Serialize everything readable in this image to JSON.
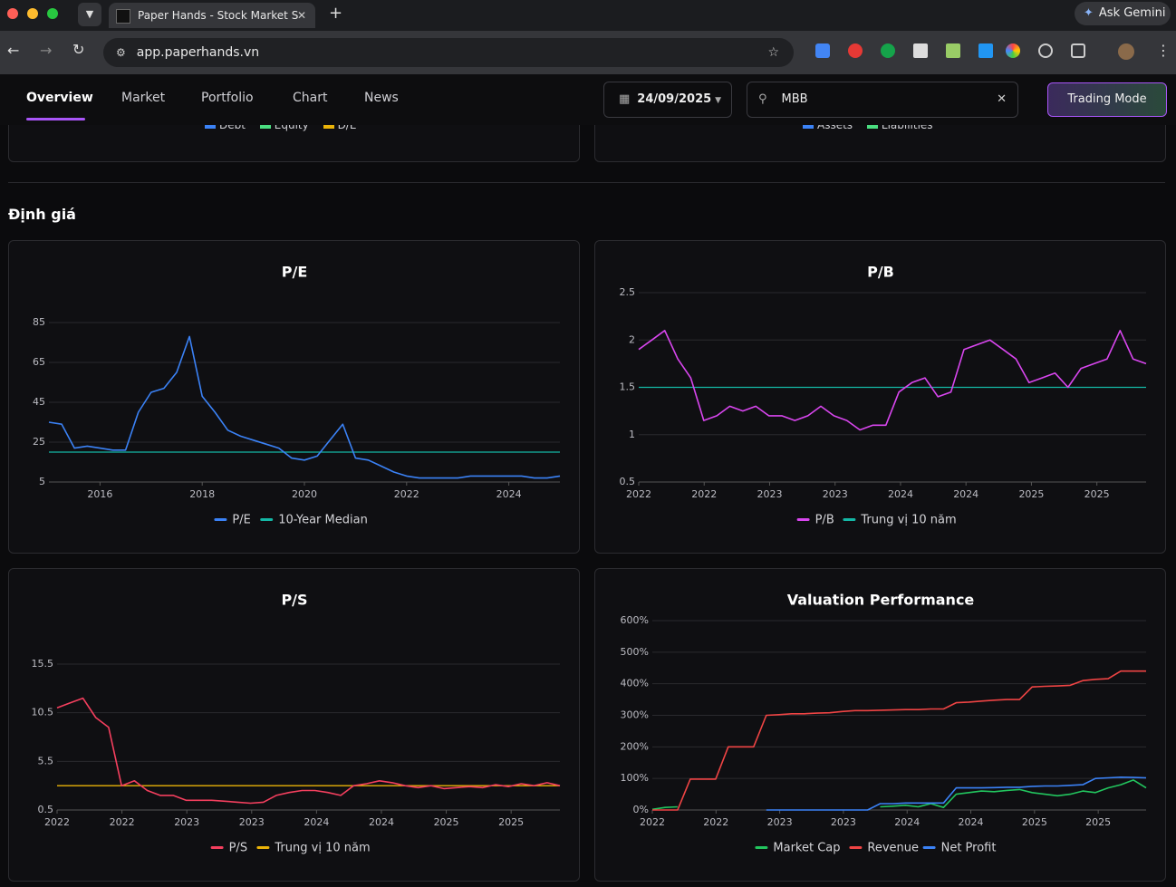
{
  "browser": {
    "tab_title": "Paper Hands - Stock Market S",
    "url": "app.paperhands.vn",
    "gemini": "Ask Gemini"
  },
  "nav": {
    "tabs": [
      "Overview",
      "Market",
      "Portfolio",
      "Chart",
      "News"
    ],
    "date": "24/09/2025",
    "search": "MBB",
    "button": "Trading Mode"
  },
  "previous_cards": [
    {
      "legend": [
        {
          "name": "Debt",
          "color": "#3b82f6"
        },
        {
          "name": "Equity",
          "color": "#4ade80"
        },
        {
          "name": "D/E",
          "color": "#eab308"
        }
      ]
    },
    {
      "legend": [
        {
          "name": "Assets",
          "color": "#3b82f6"
        },
        {
          "name": "Liabilities",
          "color": "#4ade80"
        }
      ]
    }
  ],
  "section_title": "Định giá",
  "charts": [
    {
      "type": "line",
      "title": "P/E",
      "x": [
        2015,
        2015.25,
        2015.5,
        2015.75,
        2016,
        2016.25,
        2016.5,
        2016.75,
        2017,
        2017.25,
        2017.5,
        2017.75,
        2018,
        2018.25,
        2018.5,
        2018.75,
        2019,
        2019.25,
        2019.5,
        2019.75,
        2020,
        2020.25,
        2020.5,
        2020.75,
        2021,
        2021.25,
        2021.5,
        2021.75,
        2022,
        2022.25,
        2022.5,
        2022.75,
        2023,
        2023.25,
        2023.5,
        2023.75,
        2024,
        2024.25,
        2024.5,
        2024.75,
        2025
      ],
      "xlim": [
        2015,
        2025
      ],
      "xticks": [
        2016,
        2018,
        2020,
        2022,
        2024
      ],
      "ylim": [
        5,
        85
      ],
      "yticks": [
        5,
        25,
        45,
        65,
        85
      ],
      "grid": true,
      "series": [
        {
          "name": "P/E",
          "color": "#3b82f6",
          "values": [
            35,
            34,
            22,
            23,
            22,
            21,
            21,
            40,
            50,
            52,
            60,
            78,
            48,
            40,
            31,
            28,
            26,
            24,
            22,
            17,
            16,
            18,
            26,
            34,
            17,
            16,
            13,
            10,
            8,
            7,
            7,
            7,
            7,
            8,
            8,
            8,
            8,
            8,
            7,
            7,
            8
          ]
        }
      ],
      "reference": {
        "name": "10-Year Median",
        "color": "#14b8a6",
        "value": 20
      }
    },
    {
      "type": "line",
      "title": "P/B",
      "x_labels": [
        "2022",
        "2022",
        "2023",
        "2023",
        "2024",
        "2024",
        "2025",
        "2025"
      ],
      "ylim": [
        0.5,
        2.5
      ],
      "yticks": [
        0.5,
        1,
        1.5,
        2,
        2.5
      ],
      "grid": true,
      "series": [
        {
          "name": "P/B",
          "color": "#d946ef",
          "values": [
            1.9,
            2.0,
            2.1,
            1.8,
            1.6,
            1.15,
            1.2,
            1.3,
            1.25,
            1.3,
            1.2,
            1.2,
            1.15,
            1.2,
            1.3,
            1.2,
            1.15,
            1.05,
            1.1,
            1.1,
            1.45,
            1.55,
            1.6,
            1.4,
            1.45,
            1.9,
            1.95,
            2.0,
            1.9,
            1.8,
            1.55,
            1.6,
            1.65,
            1.5,
            1.7,
            1.75,
            1.8,
            2.1,
            1.8,
            1.75
          ]
        }
      ],
      "reference": {
        "name": "Trung vị 10 năm",
        "color": "#14b8a6",
        "value": 1.5
      }
    },
    {
      "type": "line",
      "title": "P/S",
      "x_labels": [
        "2022",
        "2022",
        "2023",
        "2023",
        "2024",
        "2024",
        "2025",
        "2025"
      ],
      "ylim": [
        0.5,
        15.5
      ],
      "yticks": [
        0.5,
        5.5,
        10.5,
        15.5
      ],
      "grid": true,
      "series": [
        {
          "name": "P/S",
          "color": "#f43f5e",
          "values": [
            11,
            11.5,
            12,
            10,
            9,
            3,
            3.5,
            2.5,
            2,
            2,
            1.5,
            1.5,
            1.5,
            1.4,
            1.3,
            1.2,
            1.3,
            2,
            2.3,
            2.5,
            2.5,
            2.3,
            2,
            3,
            3.2,
            3.5,
            3.3,
            3,
            2.8,
            3,
            2.7,
            2.8,
            2.9,
            2.8,
            3.1,
            2.9,
            3.2,
            3.0,
            3.3,
            3.0
          ]
        }
      ],
      "reference": {
        "name": "Trung vị 10 năm",
        "color": "#eab308",
        "value": 3
      }
    },
    {
      "type": "line",
      "title": "Valuation Performance",
      "x_labels": [
        "2022",
        "2022",
        "2023",
        "2023",
        "2024",
        "2024",
        "2025",
        "2025"
      ],
      "ylim": [
        0,
        600
      ],
      "yticks": [
        {
          "value": 0,
          "label": "0%"
        },
        {
          "value": 100,
          "label": "100%"
        },
        {
          "value": 200,
          "label": "200%"
        },
        {
          "value": 300,
          "label": "300%"
        },
        {
          "value": 400,
          "label": "400%"
        },
        {
          "value": 500,
          "label": "500%"
        },
        {
          "value": 600,
          "label": "600%"
        }
      ],
      "grid": true,
      "series": [
        {
          "name": "Market Cap",
          "color": "#22c55e",
          "values": [
            2,
            8,
            10,
            null,
            null,
            null,
            null,
            null,
            null,
            null,
            null,
            null,
            null,
            null,
            null,
            null,
            null,
            null,
            10,
            12,
            15,
            10,
            20,
            8,
            50,
            55,
            60,
            58,
            62,
            65,
            55,
            50,
            45,
            50,
            60,
            55,
            70,
            80,
            95,
            70
          ]
        },
        {
          "name": "Revenue",
          "color": "#ef4444",
          "values": [
            0,
            0,
            0,
            98,
            98,
            98,
            200,
            200,
            200,
            300,
            302,
            305,
            305,
            307,
            308,
            312,
            315,
            315,
            316,
            317,
            318,
            318,
            320,
            320,
            340,
            342,
            345,
            348,
            350,
            350,
            390,
            392,
            393,
            395,
            410,
            414,
            416,
            440,
            440,
            440
          ]
        },
        {
          "name": "Net Profit",
          "color": "#3b82f6",
          "values": [
            null,
            null,
            null,
            null,
            null,
            null,
            null,
            null,
            null,
            0,
            0,
            0,
            0,
            0,
            0,
            0,
            0,
            0,
            20,
            20,
            22,
            22,
            22,
            22,
            70,
            70,
            70,
            71,
            72,
            72,
            75,
            76,
            76,
            78,
            80,
            100,
            102,
            104,
            103,
            102
          ]
        }
      ]
    }
  ]
}
